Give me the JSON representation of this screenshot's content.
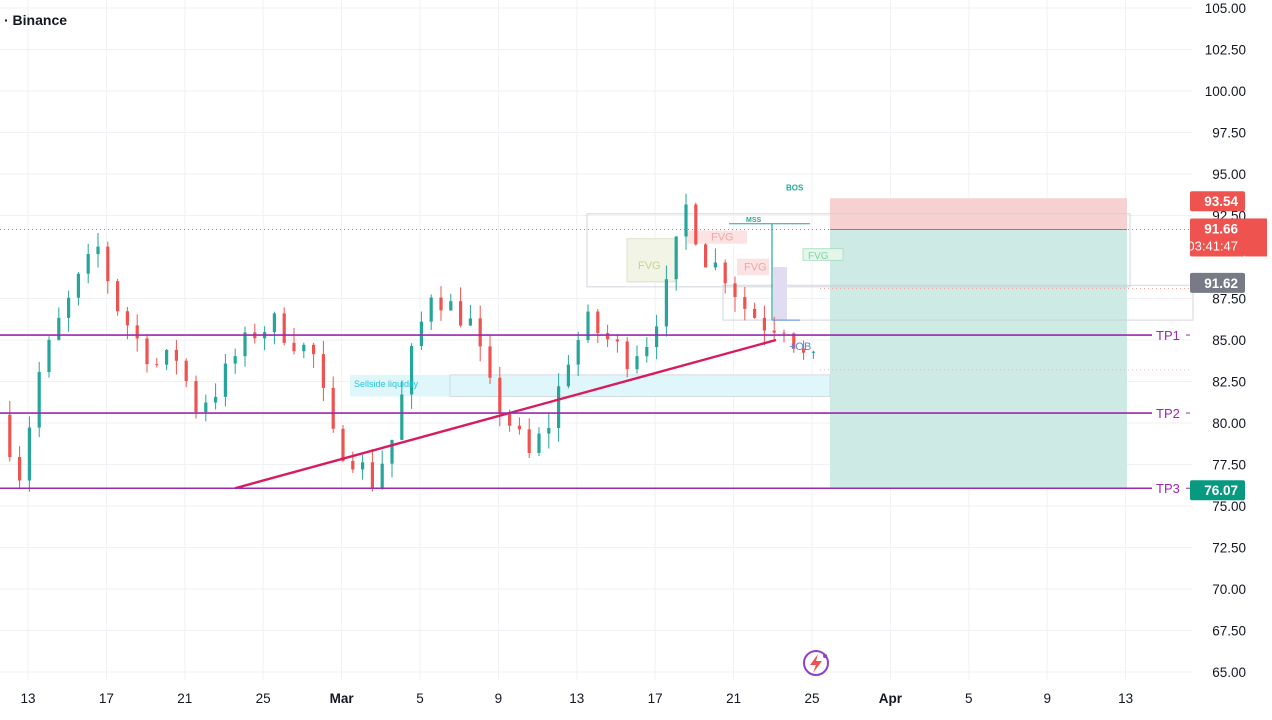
{
  "header": {
    "exchange": "· Binance"
  },
  "chart_data": {
    "type": "candlestick",
    "y_axis": {
      "ticks": [
        "105.00",
        "102.50",
        "100.00",
        "97.50",
        "95.00",
        "92.50",
        "87.50",
        "85.00",
        "82.50",
        "80.00",
        "77.50",
        "75.00",
        "72.50",
        "70.00",
        "67.50",
        "65.00"
      ],
      "ylim": [
        64.5,
        105.5
      ]
    },
    "x_axis": {
      "ticks": [
        "13",
        "17",
        "21",
        "25",
        "Mar",
        "5",
        "9",
        "13",
        "17",
        "21",
        "25",
        "Apr",
        "5",
        "9",
        "13"
      ]
    },
    "price_labels": {
      "stop": "93.54",
      "current": "91.66",
      "countdown": "03:41:47",
      "prev_close": "91.62",
      "target": "76.07"
    },
    "levels": [
      {
        "name": "TP1",
        "value": 85.3
      },
      {
        "name": "TP2",
        "value": 80.6
      },
      {
        "name": "TP3",
        "value": 76.07
      }
    ],
    "trendline": {
      "from": {
        "x": "Feb 23",
        "y": 76.07
      },
      "to": {
        "x": "Mar 23",
        "y": 85.0
      }
    },
    "position": {
      "side": "short",
      "entry": 91.66,
      "stop": 93.54,
      "target": 76.07
    },
    "annotations": [
      "FVG",
      "FVG",
      "FVG",
      "FVG",
      "BOS",
      "MSS",
      "+OB",
      "Sellside liquidity"
    ],
    "colors": {
      "up": "#26a69a",
      "down": "#ef5350",
      "levels": "#9c27b0",
      "trendline": "#d81b60",
      "stop_zone": "#f7d1d1",
      "target_zone": "#cdebe4"
    }
  }
}
